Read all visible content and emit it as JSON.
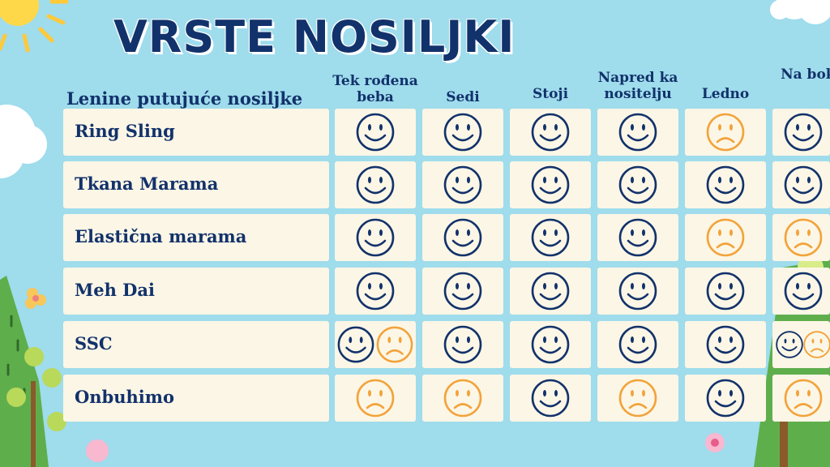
{
  "title": "VRSTE NOSILJKI",
  "table_caption": "Lenine putujuće nosiljke",
  "columns": [
    "Tek rođena beba",
    "Sedi",
    "Stoji",
    "Napred ka nositelju",
    "Ledno",
    "Na boku"
  ],
  "rows": [
    {
      "label": "Ring Sling",
      "ratings": [
        [
          "happy"
        ],
        [
          "happy"
        ],
        [
          "happy"
        ],
        [
          "happy"
        ],
        [
          "sad"
        ],
        [
          "happy"
        ]
      ]
    },
    {
      "label": "Tkana Marama",
      "ratings": [
        [
          "happy"
        ],
        [
          "happy"
        ],
        [
          "happy"
        ],
        [
          "happy"
        ],
        [
          "happy"
        ],
        [
          "happy"
        ]
      ]
    },
    {
      "label": "Elastična marama",
      "ratings": [
        [
          "happy"
        ],
        [
          "happy"
        ],
        [
          "happy"
        ],
        [
          "happy"
        ],
        [
          "sad"
        ],
        [
          "sad"
        ]
      ]
    },
    {
      "label": "Meh Dai",
      "ratings": [
        [
          "happy"
        ],
        [
          "happy"
        ],
        [
          "happy"
        ],
        [
          "happy"
        ],
        [
          "happy"
        ],
        [
          "happy"
        ]
      ]
    },
    {
      "label": "SSC",
      "ratings": [
        [
          "happy",
          "sad"
        ],
        [
          "happy"
        ],
        [
          "happy"
        ],
        [
          "happy"
        ],
        [
          "happy"
        ],
        [
          "happy",
          "sad"
        ]
      ]
    },
    {
      "label": "Onbuhimo",
      "ratings": [
        [
          "sad"
        ],
        [
          "sad"
        ],
        [
          "happy"
        ],
        [
          "sad"
        ],
        [
          "happy"
        ],
        [
          "sad"
        ]
      ]
    }
  ],
  "icons": {
    "happy": "smiley-face-icon",
    "sad": "sad-face-icon"
  },
  "colors": {
    "happy": "#12326b",
    "sad": "#f2a33a",
    "text": "#12326b",
    "cell": "#fcf6e6",
    "background": "#9fdcec"
  }
}
